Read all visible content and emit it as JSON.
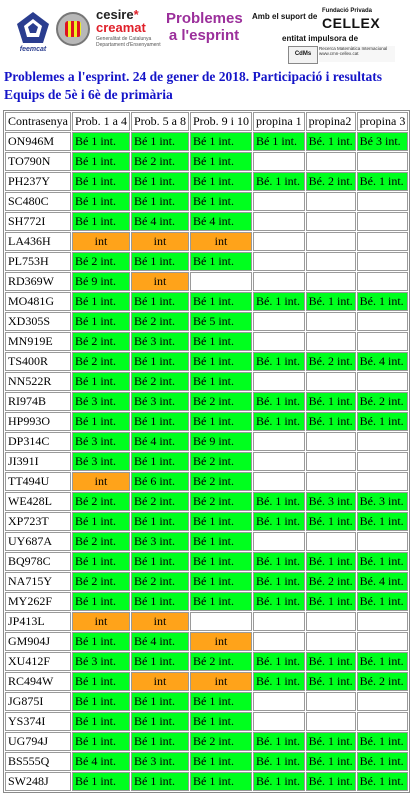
{
  "header": {
    "feemcat_label": "feemcat",
    "cesire_line1": "cesire",
    "cesire_line2": "creamat",
    "cesire_line3": "Generalitat de Catalunya Departament d'Ensenyament",
    "problemes_title_line1": "Problemes",
    "problemes_title_line2": "a l'esprint",
    "support_text": "Amb el suport de",
    "fundacio_label": "Fundació Privada",
    "cellex_label": "CELLEX",
    "impulsora_text": "entitat impulsora de",
    "cmn_logo": "CdMs",
    "cmn_text": "Recerca Matemàtica Internacional www.cmn-cellex.cat"
  },
  "title_line1": "Problemes a l'esprint. 24  de gener de 2018. Participació i resultats",
  "title_line2": "Equips de 5è i 6è de primària",
  "table": {
    "columns": [
      "Contrasenya",
      "Prob. 1 a 4",
      "Prob. 5 a 8",
      "Prob. 9 i 10",
      "propina 1",
      "propina2",
      "propina 3"
    ],
    "rows": [
      {
        "code": "ON946M",
        "cells": [
          [
            "g",
            "Bé 1 int."
          ],
          [
            "g",
            "Bé 1 int."
          ],
          [
            "g",
            "Bé 1 int."
          ],
          [
            "g",
            "Bé 1 int."
          ],
          [
            "g",
            "Bé. 1 int."
          ],
          [
            "g",
            "Bé 3 int."
          ]
        ]
      },
      {
        "code": "TO790N",
        "cells": [
          [
            "g",
            "Bé 1 int."
          ],
          [
            "g",
            "Bé 2 int."
          ],
          [
            "g",
            "Bé 1 int."
          ],
          [
            "w",
            ""
          ],
          [
            "w",
            ""
          ],
          [
            "w",
            ""
          ]
        ]
      },
      {
        "code": "PH237Y",
        "cells": [
          [
            "g",
            "Bé 1 int."
          ],
          [
            "g",
            "Bé 1 int."
          ],
          [
            "g",
            "Bé 1 int."
          ],
          [
            "g",
            "Bé. 1 int."
          ],
          [
            "g",
            "Bé. 2 int."
          ],
          [
            "g",
            "Bé. 1 int."
          ]
        ]
      },
      {
        "code": "SC480C",
        "cells": [
          [
            "g",
            "Bé 1 int."
          ],
          [
            "g",
            "Bé 1 int."
          ],
          [
            "g",
            "Bé 1 int."
          ],
          [
            "w",
            ""
          ],
          [
            "w",
            ""
          ],
          [
            "w",
            ""
          ]
        ]
      },
      {
        "code": "SH772I",
        "cells": [
          [
            "g",
            "Bé 1 int."
          ],
          [
            "g",
            "Bé 4 int."
          ],
          [
            "g",
            "Bé 4 int."
          ],
          [
            "w",
            ""
          ],
          [
            "w",
            ""
          ],
          [
            "w",
            ""
          ]
        ]
      },
      {
        "code": "LA436H",
        "cells": [
          [
            "o",
            "int"
          ],
          [
            "o",
            "int"
          ],
          [
            "o",
            "int"
          ],
          [
            "w",
            ""
          ],
          [
            "w",
            ""
          ],
          [
            "w",
            ""
          ]
        ]
      },
      {
        "code": "PL753H",
        "cells": [
          [
            "g",
            "Bé 2 int."
          ],
          [
            "g",
            "Bé 1 int."
          ],
          [
            "g",
            "Bé 1 int."
          ],
          [
            "w",
            ""
          ],
          [
            "w",
            ""
          ],
          [
            "w",
            ""
          ]
        ]
      },
      {
        "code": "RD369W",
        "cells": [
          [
            "g",
            "Bé 9 int."
          ],
          [
            "o",
            "int"
          ],
          [
            "w",
            ""
          ],
          [
            "w",
            ""
          ],
          [
            "w",
            ""
          ],
          [
            "w",
            ""
          ]
        ]
      },
      {
        "code": "MO481G",
        "cells": [
          [
            "g",
            "Bé 1 int."
          ],
          [
            "g",
            "Bé 1 int."
          ],
          [
            "g",
            "Bé 1 int."
          ],
          [
            "g",
            "Bé. 1 int."
          ],
          [
            "g",
            "Bé. 1 int."
          ],
          [
            "g",
            "Bé. 1 int."
          ]
        ]
      },
      {
        "code": "XD305S",
        "cells": [
          [
            "g",
            "Bé 1 int."
          ],
          [
            "g",
            "Bé 2 int."
          ],
          [
            "g",
            "Bé 5 int."
          ],
          [
            "w",
            ""
          ],
          [
            "w",
            ""
          ],
          [
            "w",
            ""
          ]
        ]
      },
      {
        "code": "MN919E",
        "cells": [
          [
            "g",
            "Bé 2 int."
          ],
          [
            "g",
            "Bé 3 int."
          ],
          [
            "g",
            "Bé 1 int."
          ],
          [
            "w",
            ""
          ],
          [
            "w",
            ""
          ],
          [
            "w",
            ""
          ]
        ]
      },
      {
        "code": "TS400R",
        "cells": [
          [
            "g",
            "Bé 2 int."
          ],
          [
            "g",
            "Bé 1 int."
          ],
          [
            "g",
            "Bé 1 int."
          ],
          [
            "g",
            "Bé. 1 int."
          ],
          [
            "g",
            "Bé. 2 int."
          ],
          [
            "g",
            "Bé. 4 int."
          ]
        ]
      },
      {
        "code": "NN522R",
        "cells": [
          [
            "g",
            "Bé 1 int."
          ],
          [
            "g",
            "Bé 2 int."
          ],
          [
            "g",
            "Bé 1 int."
          ],
          [
            "w",
            ""
          ],
          [
            "w",
            ""
          ],
          [
            "w",
            ""
          ]
        ]
      },
      {
        "code": "RI974B",
        "cells": [
          [
            "g",
            "Bé 3 int."
          ],
          [
            "g",
            "Bé 3 int."
          ],
          [
            "g",
            "Bé 2 int."
          ],
          [
            "g",
            "Bé. 1 int."
          ],
          [
            "g",
            "Bé. 1 int."
          ],
          [
            "g",
            "Bé. 2 int."
          ]
        ]
      },
      {
        "code": "HP993O",
        "cells": [
          [
            "g",
            "Bé 1 int."
          ],
          [
            "g",
            "Bé 1 int."
          ],
          [
            "g",
            "Bé 1 int."
          ],
          [
            "g",
            "Bé. 1 int."
          ],
          [
            "g",
            "Bé. 1 int."
          ],
          [
            "g",
            "Bé. 1 int."
          ]
        ]
      },
      {
        "code": "DP314C",
        "cells": [
          [
            "g",
            "Bé 3 int."
          ],
          [
            "g",
            "Bé 4 int."
          ],
          [
            "g",
            "Bé 9 int."
          ],
          [
            "w",
            ""
          ],
          [
            "w",
            ""
          ],
          [
            "w",
            ""
          ]
        ]
      },
      {
        "code": "JI391I",
        "cells": [
          [
            "g",
            "Bé 3 int."
          ],
          [
            "g",
            "Bé 1 int."
          ],
          [
            "g",
            "Bé 2 int."
          ],
          [
            "w",
            ""
          ],
          [
            "w",
            ""
          ],
          [
            "w",
            ""
          ]
        ]
      },
      {
        "code": "TT494U",
        "cells": [
          [
            "o",
            "int"
          ],
          [
            "g",
            "Bé 6 int."
          ],
          [
            "g",
            "Bé 2 int."
          ],
          [
            "w",
            ""
          ],
          [
            "w",
            ""
          ],
          [
            "w",
            ""
          ]
        ]
      },
      {
        "code": "WE428L",
        "cells": [
          [
            "g",
            "Bé 2 int."
          ],
          [
            "g",
            "Bé 2 int."
          ],
          [
            "g",
            "Bé 2 int."
          ],
          [
            "g",
            "Bé. 1 int."
          ],
          [
            "g",
            "Bé. 3 int."
          ],
          [
            "g",
            "Bé. 3 int."
          ]
        ]
      },
      {
        "code": "XP723T",
        "cells": [
          [
            "g",
            "Bé 1 int."
          ],
          [
            "g",
            "Bé 1 int."
          ],
          [
            "g",
            "Bé 1 int."
          ],
          [
            "g",
            "Bé. 1 int."
          ],
          [
            "g",
            "Bé. 1 int."
          ],
          [
            "g",
            "Bé. 1 int."
          ]
        ]
      },
      {
        "code": "UY687A",
        "cells": [
          [
            "g",
            "Bé 2 int."
          ],
          [
            "g",
            "Bé 3 int."
          ],
          [
            "g",
            "Bé 1 int."
          ],
          [
            "w",
            ""
          ],
          [
            "w",
            ""
          ],
          [
            "w",
            ""
          ]
        ]
      },
      {
        "code": "BQ978C",
        "cells": [
          [
            "g",
            "Bé 1 int."
          ],
          [
            "g",
            "Bé 1 int."
          ],
          [
            "g",
            "Bé 1 int."
          ],
          [
            "g",
            "Bé. 1 int."
          ],
          [
            "g",
            "Bé. 1 int."
          ],
          [
            "g",
            "Bé. 1 int."
          ]
        ]
      },
      {
        "code": "NA715Y",
        "cells": [
          [
            "g",
            "Bé 2 int."
          ],
          [
            "g",
            "Bé 2 int."
          ],
          [
            "g",
            "Bé 1 int."
          ],
          [
            "g",
            "Bé. 1 int."
          ],
          [
            "g",
            "Bé. 2 int."
          ],
          [
            "g",
            "Bé. 4 int."
          ]
        ]
      },
      {
        "code": "MY262F",
        "cells": [
          [
            "g",
            "Bé 1 int."
          ],
          [
            "g",
            "Bé 1 int."
          ],
          [
            "g",
            "Bé 1 int."
          ],
          [
            "g",
            "Bé. 1 int."
          ],
          [
            "g",
            "Bé. 1 int."
          ],
          [
            "g",
            "Bé. 1 int."
          ]
        ]
      },
      {
        "code": "JP413L",
        "cells": [
          [
            "o",
            "int"
          ],
          [
            "o",
            "int"
          ],
          [
            "w",
            ""
          ],
          [
            "w",
            ""
          ],
          [
            "w",
            ""
          ],
          [
            "w",
            ""
          ]
        ]
      },
      {
        "code": "GM904J",
        "cells": [
          [
            "g",
            "Bé 1 int."
          ],
          [
            "g",
            "Bé 4 int."
          ],
          [
            "o",
            "int"
          ],
          [
            "w",
            ""
          ],
          [
            "w",
            ""
          ],
          [
            "w",
            ""
          ]
        ]
      },
      {
        "code": "XU412F",
        "cells": [
          [
            "g",
            "Bé 3 int."
          ],
          [
            "g",
            "Bé 1 int."
          ],
          [
            "g",
            "Bé 2 int."
          ],
          [
            "g",
            "Bé. 1 int."
          ],
          [
            "g",
            "Bé. 1 int."
          ],
          [
            "g",
            "Bé. 1 int."
          ]
        ]
      },
      {
        "code": "RC494W",
        "cells": [
          [
            "g",
            "Bé 1 int."
          ],
          [
            "o",
            "int"
          ],
          [
            "o",
            "int"
          ],
          [
            "g",
            "Bé. 1 int."
          ],
          [
            "g",
            "Bé. 1 int."
          ],
          [
            "g",
            "Bé. 2 int."
          ]
        ]
      },
      {
        "code": "JG875I",
        "cells": [
          [
            "g",
            "Bé 1 int."
          ],
          [
            "g",
            "Bé 1 int."
          ],
          [
            "g",
            "Bé 1 int."
          ],
          [
            "w",
            ""
          ],
          [
            "w",
            ""
          ],
          [
            "w",
            ""
          ]
        ]
      },
      {
        "code": "YS374I",
        "cells": [
          [
            "g",
            "Bé 1 int."
          ],
          [
            "g",
            "Bé 1 int."
          ],
          [
            "g",
            "Bé 1 int."
          ],
          [
            "w",
            ""
          ],
          [
            "w",
            ""
          ],
          [
            "w",
            ""
          ]
        ]
      },
      {
        "code": "UG794J",
        "cells": [
          [
            "g",
            "Bé 1 int."
          ],
          [
            "g",
            "Bé 1 int."
          ],
          [
            "g",
            "Bé 2 int."
          ],
          [
            "g",
            "Bé. 1 int."
          ],
          [
            "g",
            "Bé. 1 int."
          ],
          [
            "g",
            "Bé. 1 int."
          ]
        ]
      },
      {
        "code": "BS555Q",
        "cells": [
          [
            "g",
            "Bé 4 int."
          ],
          [
            "g",
            "Bé 3 int."
          ],
          [
            "g",
            "Bé 1 int."
          ],
          [
            "g",
            "Bé. 1 int."
          ],
          [
            "g",
            "Bé. 1 int."
          ],
          [
            "g",
            "Bé. 1 int."
          ]
        ]
      },
      {
        "code": "SW248J",
        "cells": [
          [
            "g",
            "Bé 1 int."
          ],
          [
            "g",
            "Bé 1 int."
          ],
          [
            "g",
            "Bé 1 int."
          ],
          [
            "g",
            "Bé. 1 int."
          ],
          [
            "g",
            "Bé. 1 int."
          ],
          [
            "g",
            "Bé. 1 int."
          ]
        ]
      }
    ]
  },
  "colors": {
    "correct": "#00ff1e",
    "incorrect": "#ffa31a",
    "title": "#1414c8",
    "problemes_title": "#9b2f9b"
  },
  "icons": {
    "feemcat": "feemcat-logo-icon",
    "seal": "university-seal-icon",
    "cesire": "cesire-creamat-logo-icon",
    "cellex": "cellex-logo-icon"
  }
}
